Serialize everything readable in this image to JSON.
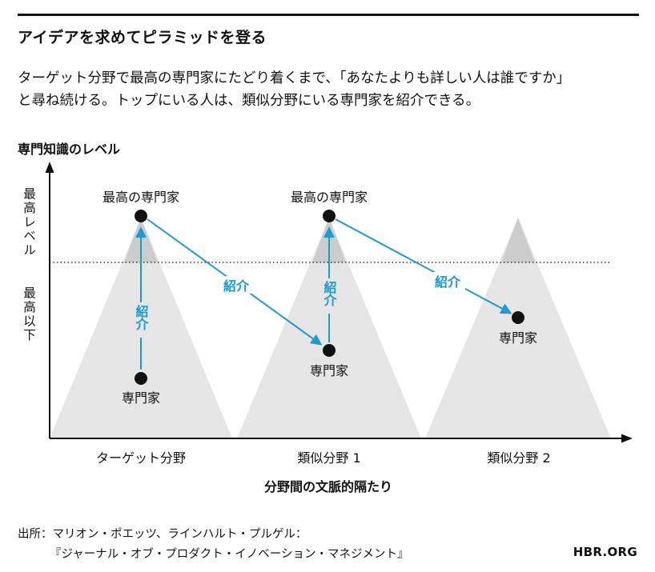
{
  "title": "アイデアを求めてピラミッドを登る",
  "subtitle_lines": [
    "ターゲット分野で最高の専門家にたどり着くまで、「あなたよりも詳しい人は誰ですか」",
    "と尋ね続ける。トップにいる人は、類似分野にいる専門家を紹介できる。"
  ],
  "y_axis": {
    "title": "専門知識のレベル",
    "label_top": "最高レベル",
    "label_bottom": "最高以下"
  },
  "x_axis": {
    "title": "分野間の文脈的隔たり",
    "fields": [
      "ターゲット分野",
      "類似分野 1",
      "類似分野 2"
    ]
  },
  "nodes": {
    "top_expert_1": "最高の専門家",
    "top_expert_2": "最高の専門家",
    "expert_1": "専門家",
    "expert_2": "専門家",
    "expert_3": "専門家"
  },
  "referral_label": "紹介",
  "source_lines": [
    "出所：マリオン・ポエッツ、ラインハルト・プルゲル：",
    "『ジャーナル・オブ・プロダクト・イノベーション・マネジメント』"
  ],
  "brand": "HBR.ORG",
  "colors": {
    "arrow": "#1a9ad6",
    "pyramid_light": "#e6e6e6",
    "pyramid_dark": "#cccccc",
    "ink": "#111111"
  }
}
